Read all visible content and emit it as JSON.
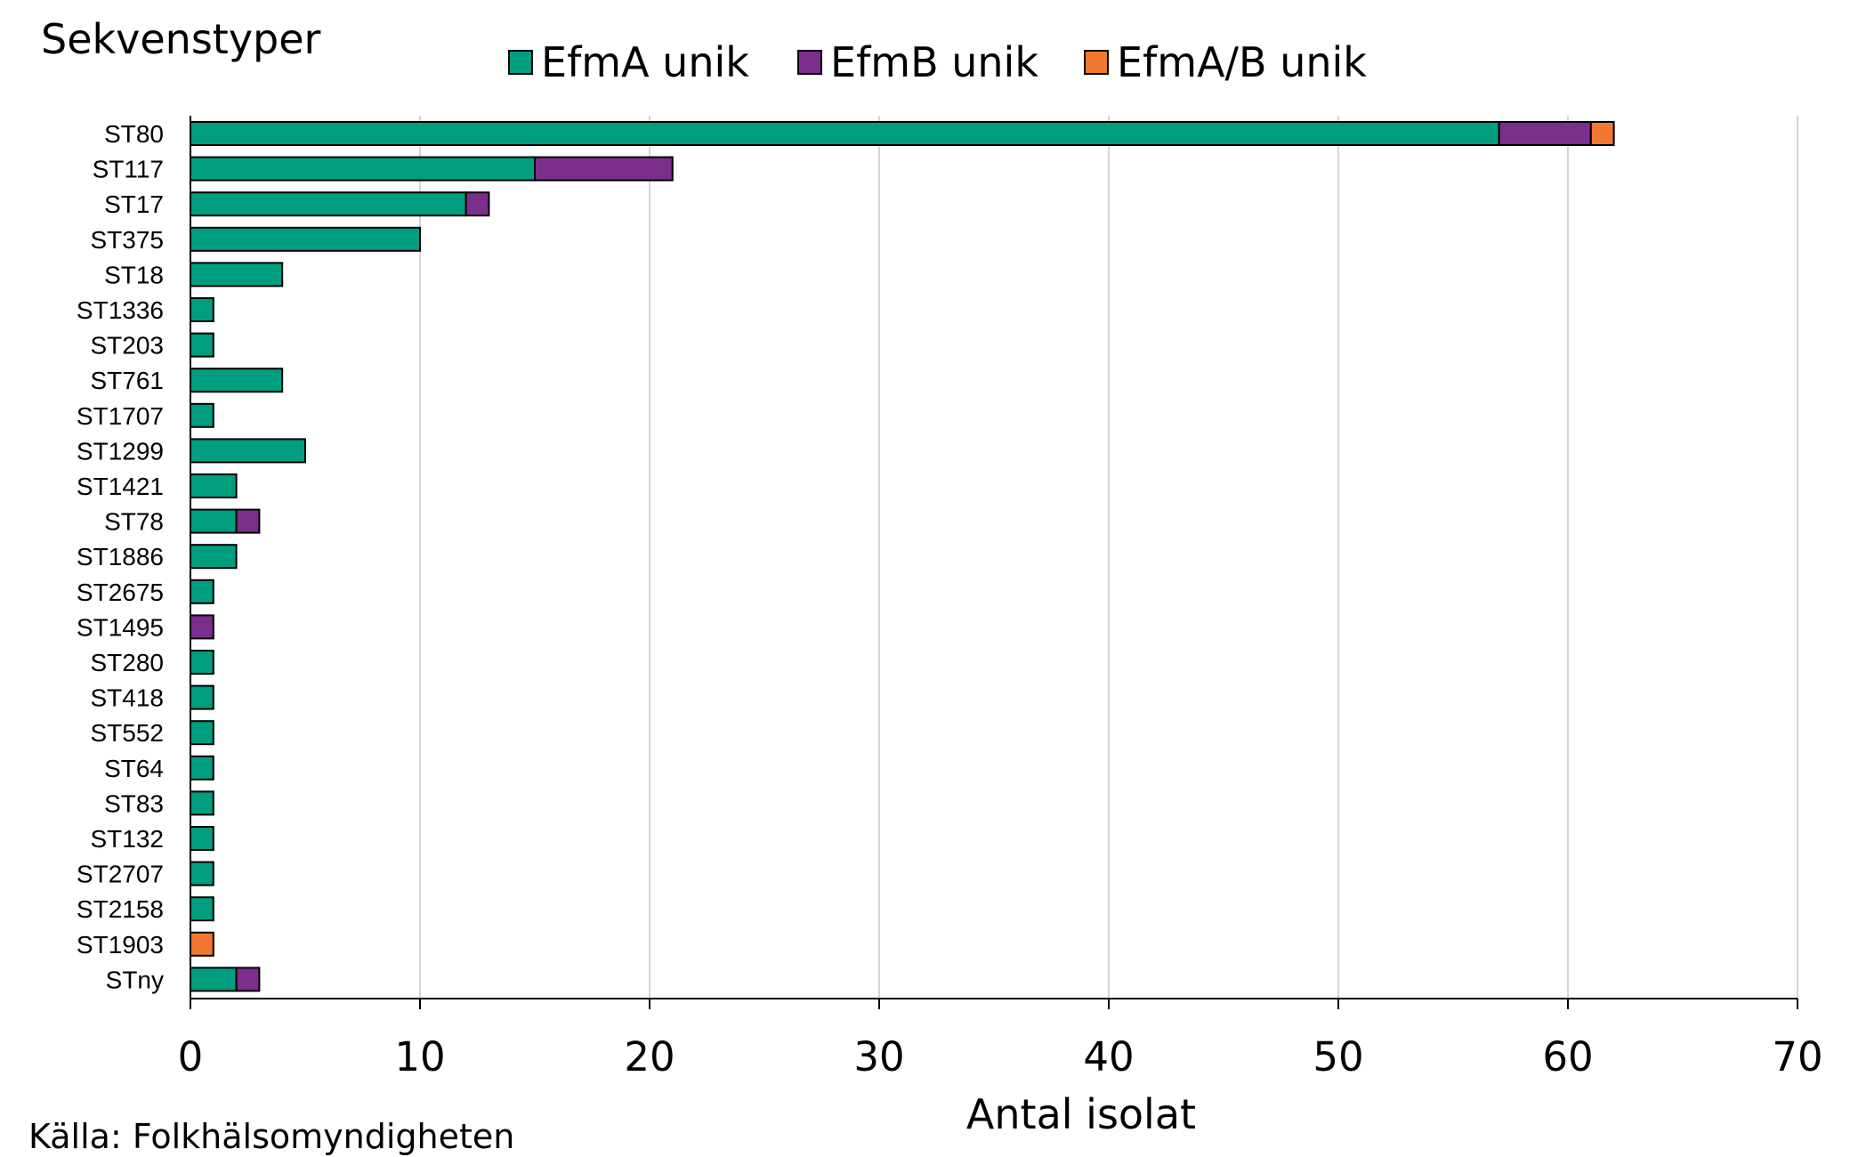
{
  "chart_data": {
    "type": "bar",
    "orientation": "horizontal",
    "stacked": true,
    "title": "Sekvenstyper",
    "xlabel": "Antal isolat",
    "ylabel": "",
    "xlim": [
      0,
      70
    ],
    "xticks": [
      0,
      10,
      20,
      30,
      40,
      50,
      60,
      70
    ],
    "grid": "vertical",
    "legend_position": "top",
    "categories": [
      "ST80",
      "ST117",
      "ST17",
      "ST375",
      "ST18",
      "ST1336",
      "ST203",
      "ST761",
      "ST1707",
      "ST1299",
      "ST1421",
      "ST78",
      "ST1886",
      "ST2675",
      "ST1495",
      "ST280",
      "ST418",
      "ST552",
      "ST64",
      "ST83",
      "ST132",
      "ST2707",
      "ST2158",
      "ST1903",
      "STny"
    ],
    "series": [
      {
        "name": "EfmA unik",
        "color": "#009E7F",
        "values": [
          57,
          15,
          12,
          10,
          4,
          1,
          1,
          4,
          1,
          5,
          2,
          2,
          2,
          1,
          0,
          1,
          1,
          1,
          1,
          1,
          1,
          1,
          1,
          0,
          2
        ]
      },
      {
        "name": "EfmB unik",
        "color": "#7B2E8C",
        "values": [
          4,
          6,
          1,
          0,
          0,
          0,
          0,
          0,
          0,
          0,
          0,
          1,
          0,
          0,
          1,
          0,
          0,
          0,
          0,
          0,
          0,
          0,
          0,
          0,
          1
        ]
      },
      {
        "name": "EfmA/B unik",
        "color": "#F07830",
        "values": [
          1,
          0,
          0,
          0,
          0,
          0,
          0,
          0,
          0,
          0,
          0,
          0,
          0,
          0,
          0,
          0,
          0,
          0,
          0,
          0,
          0,
          0,
          0,
          1,
          0
        ]
      }
    ]
  },
  "source": "Källa: Folkhälsomyndigheten"
}
